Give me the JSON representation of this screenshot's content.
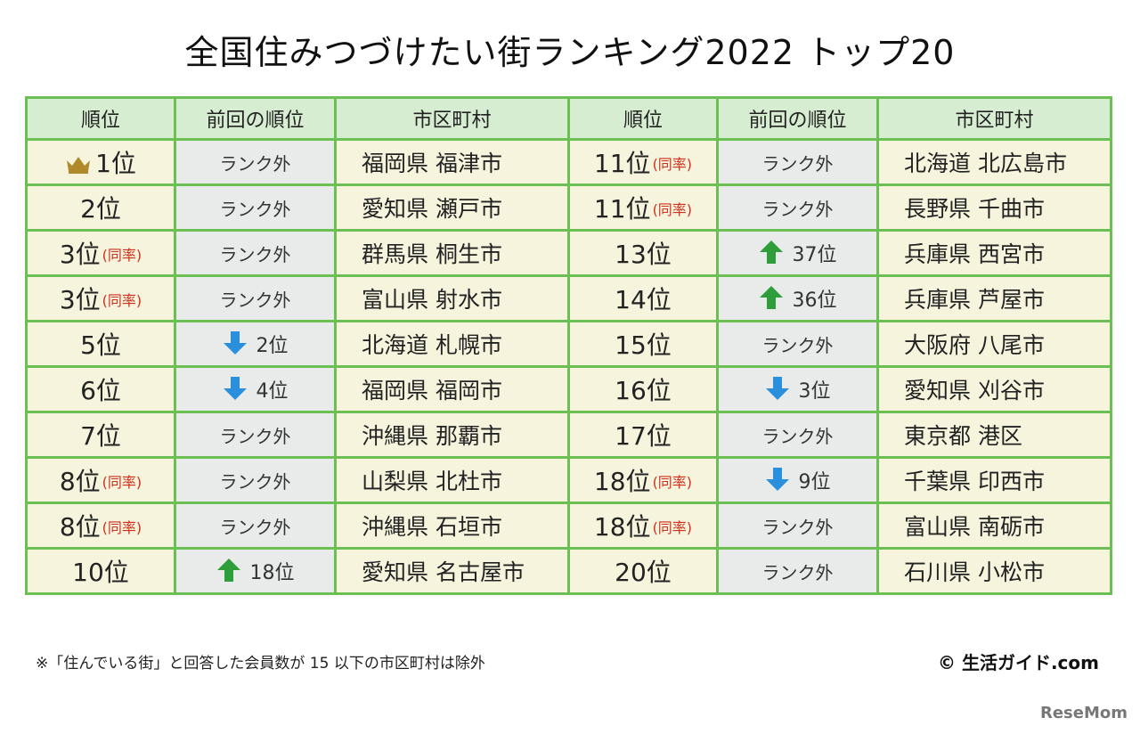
{
  "title": "全国住みつづけたい街ランキング2022 トップ20",
  "headers": [
    "順位",
    "前回の順位",
    "市区町村",
    "順位",
    "前回の順位",
    "市区町村"
  ],
  "tie_label": "(同率)",
  "rows_left": [
    {
      "rank": "1位",
      "tie": false,
      "crown": true,
      "prev": "ランク外",
      "prev_dir": "",
      "city": "福岡県 福津市"
    },
    {
      "rank": "2位",
      "tie": false,
      "prev": "ランク外",
      "prev_dir": "",
      "city": "愛知県 瀬戸市"
    },
    {
      "rank": "3位",
      "tie": true,
      "prev": "ランク外",
      "prev_dir": "",
      "city": "群馬県 桐生市"
    },
    {
      "rank": "3位",
      "tie": true,
      "prev": "ランク外",
      "prev_dir": "",
      "city": "富山県 射水市"
    },
    {
      "rank": "5位",
      "tie": false,
      "prev": "2位",
      "prev_dir": "down",
      "city": "北海道 札幌市"
    },
    {
      "rank": "6位",
      "tie": false,
      "prev": "4位",
      "prev_dir": "down",
      "city": "福岡県 福岡市"
    },
    {
      "rank": "7位",
      "tie": false,
      "prev": "ランク外",
      "prev_dir": "",
      "city": "沖縄県 那覇市"
    },
    {
      "rank": "8位",
      "tie": true,
      "prev": "ランク外",
      "prev_dir": "",
      "city": "山梨県 北杜市"
    },
    {
      "rank": "8位",
      "tie": true,
      "prev": "ランク外",
      "prev_dir": "",
      "city": "沖縄県 石垣市"
    },
    {
      "rank": "10位",
      "tie": false,
      "prev": "18位",
      "prev_dir": "up",
      "city": "愛知県 名古屋市"
    }
  ],
  "rows_right": [
    {
      "rank": "11位",
      "tie": true,
      "prev": "ランク外",
      "prev_dir": "",
      "city": "北海道 北広島市"
    },
    {
      "rank": "11位",
      "tie": true,
      "prev": "ランク外",
      "prev_dir": "",
      "city": "長野県 千曲市"
    },
    {
      "rank": "13位",
      "tie": false,
      "prev": "37位",
      "prev_dir": "up",
      "city": "兵庫県 西宮市"
    },
    {
      "rank": "14位",
      "tie": false,
      "prev": "36位",
      "prev_dir": "up",
      "city": "兵庫県 芦屋市"
    },
    {
      "rank": "15位",
      "tie": false,
      "prev": "ランク外",
      "prev_dir": "",
      "city": "大阪府 八尾市"
    },
    {
      "rank": "16位",
      "tie": false,
      "prev": "3位",
      "prev_dir": "down",
      "city": "愛知県 刈谷市"
    },
    {
      "rank": "17位",
      "tie": false,
      "prev": "ランク外",
      "prev_dir": "",
      "city": "東京都 港区"
    },
    {
      "rank": "18位",
      "tie": true,
      "prev": "9位",
      "prev_dir": "down",
      "city": "千葉県 印西市"
    },
    {
      "rank": "18位",
      "tie": true,
      "prev": "ランク外",
      "prev_dir": "",
      "city": "富山県 南砺市"
    },
    {
      "rank": "20位",
      "tie": false,
      "prev": "ランク外",
      "prev_dir": "",
      "city": "石川県 小松市"
    }
  ],
  "footnote": "※「住んでいる街」と回答した会員数が 15 以下の市区町村は除外",
  "credit": "© 生活ガイド.com",
  "logo": "ReseMom",
  "colors": {
    "border": "#6cbf52",
    "header_bg": "#d7edd1",
    "rank_bg": "#f7f4de",
    "prev_bg": "#e9eaea",
    "tie_text": "#d0301c",
    "arrow_up": "#2e9e3a",
    "arrow_down": "#2a8fdc",
    "crown": "#b08a2a"
  },
  "icons": {
    "crown": "crown-icon",
    "up": "arrow-up-icon",
    "down": "arrow-down-icon"
  }
}
